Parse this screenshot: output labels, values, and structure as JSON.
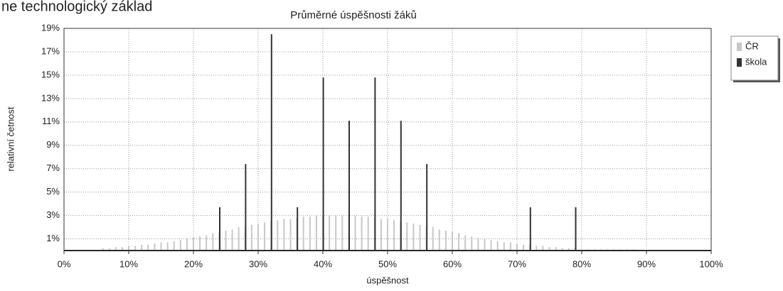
{
  "heading": "ne technologický základ",
  "chart_data": {
    "type": "bar",
    "title": "Průměrné úspěšnosti žáků",
    "x_label": "úspěšnost",
    "y_label": "relativní četnost",
    "x": [
      6,
      7,
      8,
      9,
      10,
      11,
      12,
      13,
      14,
      15,
      16,
      17,
      18,
      19,
      20,
      21,
      22,
      23,
      24,
      25,
      26,
      27,
      28,
      29,
      30,
      31,
      32,
      33,
      34,
      35,
      36,
      37,
      38,
      39,
      40,
      41,
      42,
      43,
      44,
      45,
      46,
      47,
      48,
      49,
      50,
      51,
      52,
      53,
      54,
      55,
      56,
      57,
      58,
      59,
      60,
      61,
      62,
      63,
      64,
      65,
      66,
      67,
      68,
      69,
      70,
      71,
      72,
      73,
      74,
      75,
      76,
      77,
      78,
      79,
      80,
      81,
      82,
      83,
      84,
      85,
      86,
      87,
      88
    ],
    "series": [
      {
        "name": "ČR",
        "color": "#c8c8c8",
        "values": [
          0.2,
          0.2,
          0.3,
          0.3,
          0.4,
          0.4,
          0.5,
          0.5,
          0.6,
          0.7,
          0.7,
          0.8,
          0.9,
          1.0,
          1.1,
          1.2,
          1.3,
          1.5,
          1.6,
          1.7,
          1.8,
          2.0,
          2.1,
          2.2,
          2.3,
          2.4,
          2.5,
          2.6,
          2.7,
          2.7,
          2.8,
          2.9,
          2.9,
          3.0,
          3.0,
          3.0,
          3.0,
          3.0,
          3.0,
          3.0,
          2.9,
          2.9,
          2.8,
          2.7,
          2.7,
          2.6,
          2.5,
          2.4,
          2.3,
          2.2,
          2.1,
          2.0,
          1.8,
          1.7,
          1.6,
          1.5,
          1.3,
          1.2,
          1.1,
          1.0,
          0.9,
          0.8,
          0.7,
          0.7,
          0.6,
          0.5,
          0.5,
          0.4,
          0.4,
          0.3,
          0.3,
          0.2,
          0.2,
          0.2,
          0.1,
          0.1,
          0.1,
          0.1,
          0.1,
          0.1,
          0.1,
          0.1,
          0.1
        ]
      },
      {
        "name": "škola",
        "color": "#333333",
        "values": [
          null,
          null,
          null,
          null,
          null,
          null,
          null,
          null,
          null,
          null,
          null,
          null,
          null,
          null,
          null,
          null,
          null,
          null,
          3.7,
          null,
          null,
          null,
          7.4,
          null,
          null,
          null,
          18.5,
          null,
          null,
          null,
          3.7,
          null,
          null,
          null,
          14.8,
          null,
          null,
          null,
          11.1,
          null,
          null,
          null,
          14.8,
          null,
          null,
          null,
          11.1,
          null,
          null,
          null,
          7.4,
          null,
          null,
          null,
          null,
          null,
          null,
          null,
          null,
          null,
          null,
          null,
          null,
          null,
          null,
          null,
          3.7,
          null,
          null,
          null,
          null,
          null,
          null,
          3.7,
          null,
          null,
          null,
          null,
          null,
          null,
          null,
          null,
          null
        ]
      }
    ],
    "xlim": [
      0,
      100
    ],
    "xticks": [
      {
        "value": 0,
        "label": "0%"
      },
      {
        "value": 10,
        "label": "10%"
      },
      {
        "value": 20,
        "label": "20%"
      },
      {
        "value": 30,
        "label": "30%"
      },
      {
        "value": 40,
        "label": "40%"
      },
      {
        "value": 50,
        "label": "50%"
      },
      {
        "value": 60,
        "label": "60%"
      },
      {
        "value": 70,
        "label": "70%"
      },
      {
        "value": 80,
        "label": "80%"
      },
      {
        "value": 90,
        "label": "90%"
      },
      {
        "value": 100,
        "label": "100%"
      }
    ],
    "ylim": [
      0,
      19
    ],
    "yticks": [
      {
        "value": 1,
        "label": "1%"
      },
      {
        "value": 3,
        "label": "3%"
      },
      {
        "value": 5,
        "label": "5%"
      },
      {
        "value": 7,
        "label": "7%"
      },
      {
        "value": 9,
        "label": "9%"
      },
      {
        "value": 11,
        "label": "11%"
      },
      {
        "value": 13,
        "label": "13%"
      },
      {
        "value": 15,
        "label": "15%"
      },
      {
        "value": 17,
        "label": "17%"
      },
      {
        "value": 19,
        "label": "19%"
      }
    ],
    "grid": true
  }
}
